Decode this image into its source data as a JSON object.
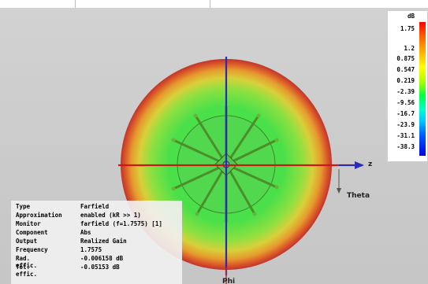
{
  "legend": {
    "unit": "dB",
    "ticks": [
      "1.75",
      "1.2",
      "0.875",
      "0.547",
      "0.219",
      "-2.39",
      "-9.56",
      "-16.7",
      "-23.9",
      "-31.1",
      "-38.3"
    ]
  },
  "axes": {
    "z": "z",
    "theta": "Theta",
    "phi": "Phi"
  },
  "info": [
    {
      "key": "Type",
      "value": "Farfield"
    },
    {
      "key": "Approximation",
      "value": "enabled (kR >> 1)"
    },
    {
      "key": "Monitor",
      "value": "farfield (f=1.7575) [1]"
    },
    {
      "key": "Component",
      "value": "Abs"
    },
    {
      "key": "Output",
      "value": "Realized Gain"
    },
    {
      "key": "Frequency",
      "value": "1.7575"
    },
    {
      "key": "Rad. effic.",
      "value": "-0.006158 dB"
    },
    {
      "key": "Tot. effic.",
      "value": "-0.05153 dB"
    }
  ],
  "colors": {
    "axis_red": "#d01010",
    "axis_blue": "#2020c0",
    "background": "#cccccc"
  }
}
